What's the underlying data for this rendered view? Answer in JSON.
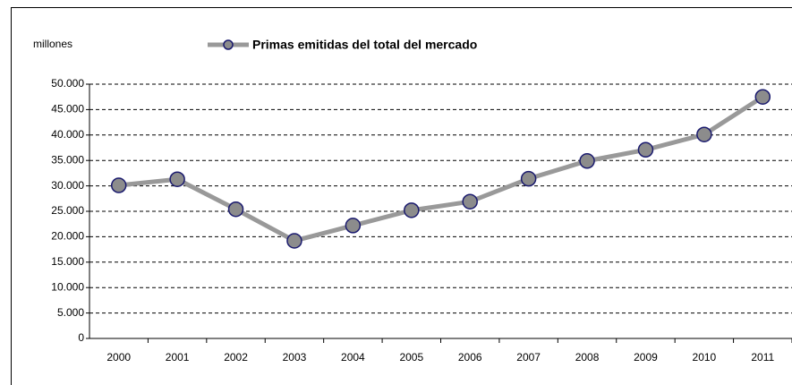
{
  "chart_data": {
    "type": "line",
    "y_label": "millones",
    "categories": [
      "2000",
      "2001",
      "2002",
      "2003",
      "2004",
      "2005",
      "2006",
      "2007",
      "2008",
      "2009",
      "2010",
      "2011"
    ],
    "series": [
      {
        "name": "Primas emitidas del total del mercado",
        "color": "#999999",
        "marker_fill": "#8c8c8c",
        "marker_edge": "#1a1a6e",
        "values": [
          30100,
          31300,
          25400,
          19200,
          22200,
          25200,
          26900,
          31400,
          34900,
          37100,
          40100,
          47500
        ]
      }
    ],
    "ylim": [
      0,
      50000
    ],
    "yticks": [
      0,
      {
        "value": 5000,
        "label": "5.000"
      },
      {
        "value": 10000,
        "label": "10.000"
      },
      {
        "value": 15000,
        "label": "15.000"
      },
      {
        "value": 20000,
        "label": "20.000"
      },
      {
        "value": 25000,
        "label": "25.000"
      },
      {
        "value": 30000,
        "label": "30.000"
      },
      {
        "value": 35000,
        "label": "35.000"
      },
      {
        "value": 40000,
        "label": "40.000"
      },
      {
        "value": 45000,
        "label": "45.000"
      },
      {
        "value": 50000,
        "label": "50.000"
      }
    ],
    "grid": true
  }
}
